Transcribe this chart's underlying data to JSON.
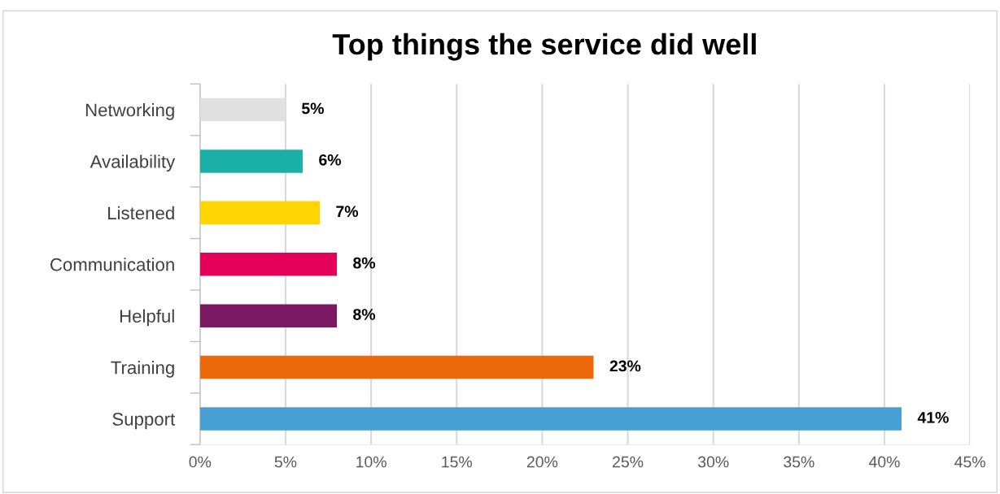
{
  "chart_data": {
    "type": "bar",
    "orientation": "horizontal",
    "title": "Top things the service did well",
    "categories": [
      "Networking",
      "Availability",
      "Listened",
      "Communication",
      "Helpful",
      "Training",
      "Support"
    ],
    "values": [
      5,
      6,
      7,
      8,
      8,
      23,
      41
    ],
    "colors": [
      "#e0e0e0",
      "#1ab0a8",
      "#ffd500",
      "#e5005a",
      "#7b1a62",
      "#ec6a0c",
      "#479fd4"
    ],
    "value_labels": [
      "5%",
      "6%",
      "7%",
      "8%",
      "8%",
      "23%",
      "41%"
    ],
    "xlim": [
      0,
      45
    ],
    "xticks": [
      {
        "value": 0,
        "label": "0%"
      },
      {
        "value": 5,
        "label": "5%"
      },
      {
        "value": 10,
        "label": "10%"
      },
      {
        "value": 15,
        "label": "15%"
      },
      {
        "value": 20,
        "label": "20%"
      },
      {
        "value": 25,
        "label": "25%"
      },
      {
        "value": 30,
        "label": "30%"
      },
      {
        "value": 35,
        "label": "35%"
      },
      {
        "value": 40,
        "label": "40%"
      },
      {
        "value": 45,
        "label": "45%"
      }
    ],
    "grid": "x",
    "legend": false
  }
}
